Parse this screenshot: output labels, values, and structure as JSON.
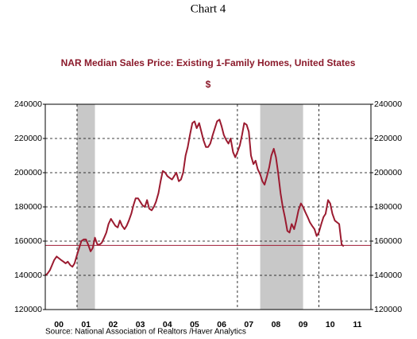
{
  "chart_data": {
    "type": "line",
    "header": "Chart 4",
    "title": "NAR Median Sales Price: Existing 1-Family Homes, United States",
    "subtitle": "$",
    "source": "Source:  National Association of Realtors /Haver Analytics",
    "xlim": [
      2000,
      2012
    ],
    "ylim": [
      120000,
      240000
    ],
    "yticks": [
      120000,
      140000,
      160000,
      180000,
      200000,
      220000,
      240000
    ],
    "xticks": [
      {
        "value": 2000.5,
        "label": "00"
      },
      {
        "value": 2001.5,
        "label": "01"
      },
      {
        "value": 2002.5,
        "label": "02"
      },
      {
        "value": 2003.5,
        "label": "03"
      },
      {
        "value": 2004.5,
        "label": "04"
      },
      {
        "value": 2005.5,
        "label": "05"
      },
      {
        "value": 2006.5,
        "label": "06"
      },
      {
        "value": 2007.5,
        "label": "07"
      },
      {
        "value": 2008.5,
        "label": "08"
      },
      {
        "value": 2009.5,
        "label": "09"
      },
      {
        "value": 2010.5,
        "label": "10"
      },
      {
        "value": 2011.5,
        "label": "11"
      }
    ],
    "grid": true,
    "vlines": [
      2001.17,
      2007.08,
      2010.08
    ],
    "recessions": [
      [
        2001.17,
        2001.83
      ],
      [
        2007.92,
        2009.5
      ]
    ],
    "reference_line": {
      "value": 157500,
      "color": "#a01c34"
    },
    "x": [
      2000,
      2000.08,
      2000.17,
      2000.25,
      2000.33,
      2000.42,
      2000.5,
      2000.58,
      2000.67,
      2000.75,
      2000.83,
      2000.92,
      2001,
      2001.08,
      2001.17,
      2001.25,
      2001.33,
      2001.42,
      2001.5,
      2001.58,
      2001.67,
      2001.75,
      2001.83,
      2001.92,
      2002,
      2002.08,
      2002.17,
      2002.25,
      2002.33,
      2002.42,
      2002.5,
      2002.58,
      2002.67,
      2002.75,
      2002.83,
      2002.92,
      2003,
      2003.08,
      2003.17,
      2003.25,
      2003.33,
      2003.42,
      2003.5,
      2003.58,
      2003.67,
      2003.75,
      2003.83,
      2003.92,
      2004,
      2004.08,
      2004.17,
      2004.25,
      2004.33,
      2004.42,
      2004.5,
      2004.58,
      2004.67,
      2004.75,
      2004.83,
      2004.92,
      2005,
      2005.08,
      2005.17,
      2005.25,
      2005.33,
      2005.42,
      2005.5,
      2005.58,
      2005.67,
      2005.75,
      2005.83,
      2005.92,
      2006,
      2006.08,
      2006.17,
      2006.25,
      2006.33,
      2006.42,
      2006.5,
      2006.58,
      2006.67,
      2006.75,
      2006.83,
      2006.92,
      2007,
      2007.08,
      2007.17,
      2007.25,
      2007.33,
      2007.42,
      2007.5,
      2007.58,
      2007.67,
      2007.75,
      2007.83,
      2007.92,
      2008,
      2008.08,
      2008.17,
      2008.25,
      2008.33,
      2008.42,
      2008.5,
      2008.58,
      2008.67,
      2008.75,
      2008.83,
      2008.92,
      2009,
      2009.08,
      2009.17,
      2009.25,
      2009.33,
      2009.42,
      2009.5,
      2009.58,
      2009.67,
      2009.75,
      2009.83,
      2009.92,
      2010,
      2010.08,
      2010.17,
      2010.25,
      2010.33,
      2010.42,
      2010.5,
      2010.58,
      2010.67,
      2010.75,
      2010.83,
      2010.92,
      2011
    ],
    "series": [
      {
        "color": "#9b1b30",
        "values": [
          140000,
          141000,
          143000,
          146000,
          149000,
          151000,
          150000,
          149000,
          148000,
          147000,
          148000,
          146000,
          145000,
          147000,
          152000,
          156000,
          160000,
          161000,
          161000,
          158000,
          154000,
          156000,
          162000,
          158000,
          158000,
          159000,
          162000,
          165000,
          170000,
          173000,
          171000,
          169000,
          168000,
          172000,
          169000,
          167000,
          169000,
          172000,
          176000,
          181000,
          185000,
          185000,
          183000,
          181000,
          180000,
          184000,
          179000,
          178000,
          180000,
          183000,
          188000,
          195000,
          201000,
          200000,
          198000,
          197000,
          196000,
          198000,
          200000,
          195000,
          196000,
          200000,
          210000,
          215000,
          222000,
          229000,
          230000,
          226000,
          229000,
          224000,
          219000,
          215000,
          215000,
          217000,
          222000,
          226000,
          230000,
          231000,
          227000,
          222000,
          219000,
          217000,
          220000,
          212000,
          209000,
          212000,
          216000,
          222000,
          229000,
          228000,
          224000,
          210000,
          205000,
          207000,
          202000,
          199000,
          195000,
          193000,
          198000,
          203000,
          210000,
          214000,
          209000,
          200000,
          188000,
          180000,
          174000,
          166000,
          165000,
          170000,
          167000,
          172000,
          178000,
          182000,
          180000,
          177000,
          174000,
          171000,
          169000,
          167000,
          163000,
          165000,
          170000,
          174000,
          176000,
          184000,
          182000,
          176000,
          172000,
          171000,
          170000,
          158000,
          157000
        ]
      }
    ]
  }
}
